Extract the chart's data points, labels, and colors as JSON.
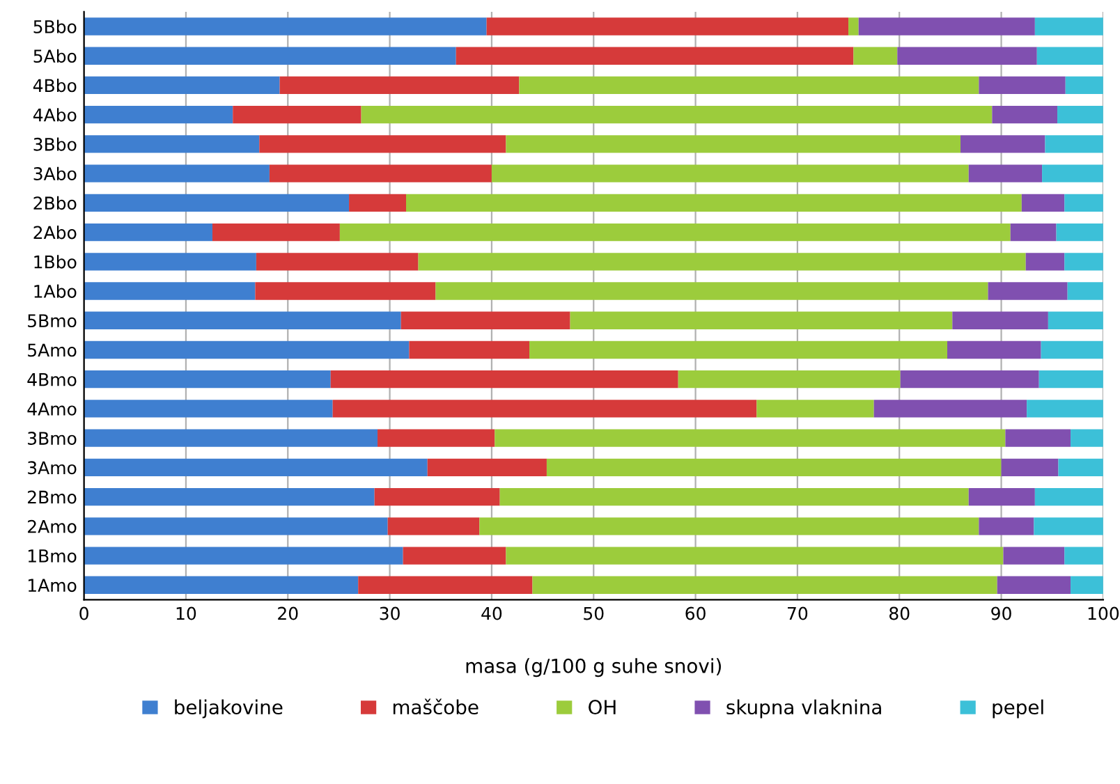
{
  "chart_data": {
    "type": "bar",
    "orientation": "horizontal",
    "stacked": true,
    "xlabel": "masa (g/100 g suhe snovi)",
    "categories": [
      "5Bbo",
      "5Abo",
      "4Bbo",
      "4Abo",
      "3Bbo",
      "3Abo",
      "2Bbo",
      "2Abo",
      "1Bbo",
      "1Abo",
      "5Bmo",
      "5Amo",
      "4Bmo",
      "4Amo",
      "3Bmo",
      "3Amo",
      "2Bmo",
      "2Amo",
      "1Bmo",
      "1Amo"
    ],
    "series": [
      {
        "name": "beljakovine",
        "color": "#3f7fd0",
        "values": [
          39.5,
          36.5,
          19.2,
          14.6,
          17.2,
          18.2,
          26,
          12.6,
          16.9,
          16.8,
          31.1,
          31.9,
          24.2,
          24.4,
          28.8,
          33.7,
          28.5,
          29.8,
          31.3,
          26.9
        ]
      },
      {
        "name": "maščobe",
        "color": "#d63a3a",
        "values": [
          35.5,
          39,
          23.5,
          12.6,
          24.2,
          21.8,
          5.6,
          12.5,
          15.9,
          17.7,
          16.6,
          11.8,
          34.1,
          41.6,
          11.5,
          11.7,
          12.3,
          9,
          10.1,
          17.1
        ]
      },
      {
        "name": "OH",
        "color": "#9ccc3c",
        "values": [
          1,
          4.3,
          45.1,
          61.9,
          44.6,
          46.8,
          60.4,
          65.8,
          59.6,
          54.2,
          37.5,
          41,
          21.8,
          11.5,
          50.1,
          44.6,
          46,
          49,
          48.8,
          45.6
        ]
      },
      {
        "name": "skupna vlaknina",
        "color": "#8050b0",
        "values": [
          17.3,
          13.7,
          8.5,
          6.4,
          8.3,
          7.2,
          4.2,
          4.5,
          3.8,
          7.8,
          9.4,
          9.2,
          13.6,
          15,
          6.4,
          5.6,
          6.5,
          5.4,
          6,
          7.2
        ]
      },
      {
        "name": "pepel",
        "color": "#3cc0d8",
        "values": [
          6.7,
          6.5,
          3.7,
          4.5,
          5.7,
          6,
          3.8,
          4.6,
          3.8,
          3.5,
          5.4,
          6.1,
          6.3,
          7.5,
          3.2,
          4.4,
          6.7,
          6.8,
          3.8,
          3.2
        ]
      }
    ],
    "xlim": [
      0,
      100
    ],
    "xticks": [
      0,
      10,
      20,
      30,
      40,
      50,
      60,
      70,
      80,
      90,
      100
    ],
    "grid": "x",
    "legend": "bottom"
  }
}
